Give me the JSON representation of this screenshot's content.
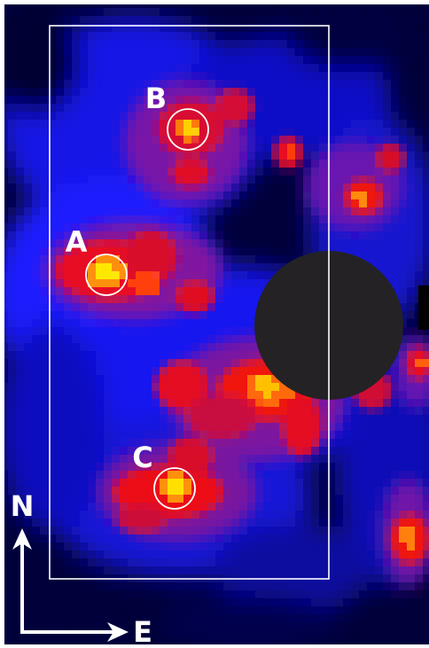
{
  "image": {
    "kind": "false-color intensity map",
    "colormap": [
      "#000011",
      "#0a0aa8",
      "#1a1aff",
      "#7a1aa0",
      "#d80c24",
      "#ff1a10",
      "#ff8a10",
      "#ffe800"
    ],
    "background_color": "#ffffff"
  },
  "sources": [
    {
      "label": "A",
      "marker": "circle"
    },
    {
      "label": "B",
      "marker": "circle"
    },
    {
      "label": "C",
      "marker": "circle"
    }
  ],
  "field_box": {
    "color": "#ffffff"
  },
  "mask": {
    "shape": "circle",
    "color": "#242224"
  },
  "compass": {
    "north_label": "N",
    "east_label": "E",
    "color": "#ffffff"
  }
}
